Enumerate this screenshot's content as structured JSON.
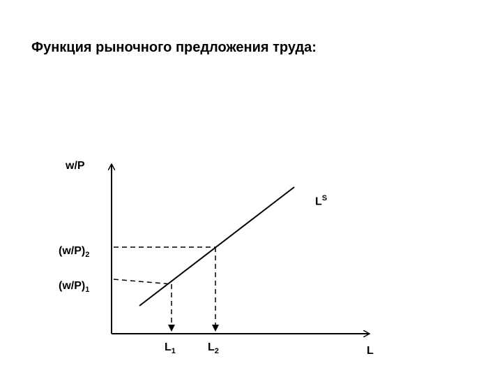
{
  "title": "Функция рыночного предложения труда:",
  "y_axis_label": "w/P",
  "x_axis_label": "L",
  "curve_label": {
    "base": "L",
    "sup": "S"
  },
  "y_marks": [
    {
      "base": "(w/P)",
      "sub": "2"
    },
    {
      "base": "(w/P)",
      "sub": "1"
    }
  ],
  "x_marks": [
    {
      "base": "L",
      "sub": "1"
    },
    {
      "base": "L",
      "sub": "2"
    }
  ]
}
